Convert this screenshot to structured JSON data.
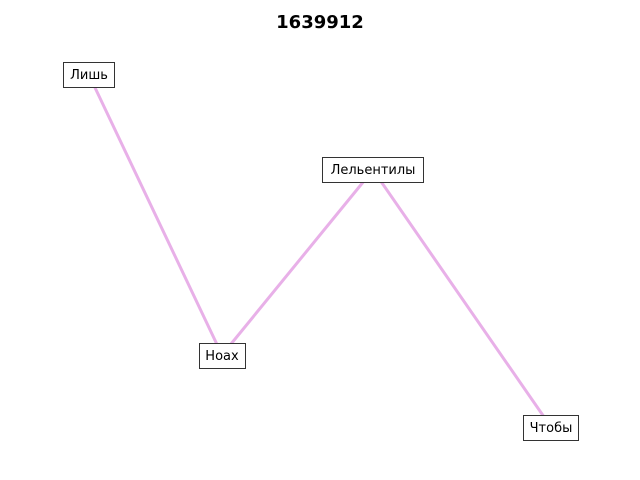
{
  "title": "1639912",
  "style": {
    "edge_color": "#e8b0e8",
    "node_border_color": "#333333",
    "background": "#ffffff"
  },
  "nodes": [
    {
      "id": "n1",
      "label": "Лишь"
    },
    {
      "id": "n2",
      "label": "Ноах"
    },
    {
      "id": "n3",
      "label": "Лельентилы"
    },
    {
      "id": "n4",
      "label": "Чтобы"
    }
  ],
  "edges": [
    {
      "from": "n1",
      "to": "n2"
    },
    {
      "from": "n2",
      "to": "n3"
    },
    {
      "from": "n3",
      "to": "n4"
    }
  ]
}
